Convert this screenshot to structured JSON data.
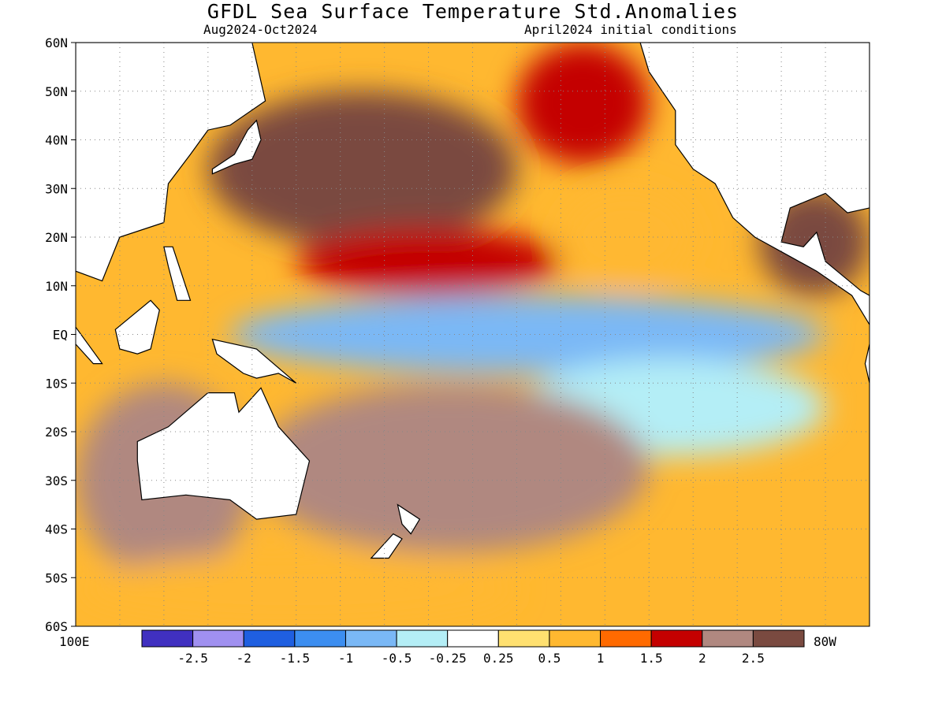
{
  "chart_data": {
    "type": "heatmap",
    "title": "GFDL Sea Surface Temperature Std.Anomalies",
    "subtitle_left": "Aug2024-Oct2024",
    "subtitle_right": "April2024 initial conditions",
    "xlim": [
      100,
      280
    ],
    "x_edge_labels": [
      "100E",
      "80W"
    ],
    "ylim": [
      -60,
      60
    ],
    "y_tick_values": [
      60,
      50,
      40,
      30,
      20,
      10,
      0,
      -10,
      -20,
      -30,
      -40,
      -50,
      -60
    ],
    "y_tick_labels": [
      "60N",
      "50N",
      "40N",
      "30N",
      "20N",
      "10N",
      "EQ",
      "10S",
      "20S",
      "30S",
      "40S",
      "50S",
      "60S"
    ],
    "grid": true,
    "legend_placement": "bottom",
    "colorbar": {
      "colors": [
        "#4030c0",
        "#a090f0",
        "#1f5fe0",
        "#3c8ef0",
        "#7ab8f6",
        "#b4eef6",
        "#ffffff",
        "#ffe070",
        "#ffb830",
        "#ff6a00",
        "#c40000",
        "#b08880",
        "#7a4a40"
      ],
      "tick_labels": [
        "-2.5",
        "-2",
        "-1.5",
        "-1",
        "-0.5",
        "-0.25",
        "0.25",
        "0.5",
        "1",
        "1.5",
        "2",
        "2.5"
      ]
    },
    "anomaly_regions": [
      {
        "lon": [
          130,
          200
        ],
        "lat": [
          18,
          50
        ],
        "value": 2.5
      },
      {
        "lon": [
          200,
          230
        ],
        "lat": [
          35,
          60
        ],
        "value": 1.5
      },
      {
        "lon": [
          150,
          210
        ],
        "lat": [
          8,
          22
        ],
        "value": 1.6
      },
      {
        "lon": [
          210,
          240
        ],
        "lat": [
          10,
          30
        ],
        "value": 0.6
      },
      {
        "lon": [
          135,
          270
        ],
        "lat": [
          -8,
          8
        ],
        "value": -0.6
      },
      {
        "lon": [
          200,
          270
        ],
        "lat": [
          -25,
          -5
        ],
        "value": -0.4
      },
      {
        "lon": [
          140,
          230
        ],
        "lat": [
          -45,
          -10
        ],
        "value": 2.4
      },
      {
        "lon": [
          100,
          140
        ],
        "lat": [
          -50,
          -10
        ],
        "value": 2.0
      },
      {
        "lon": [
          100,
          200
        ],
        "lat": [
          -60,
          -45
        ],
        "value": 0.8
      },
      {
        "lon": [
          255,
          280
        ],
        "lat": [
          8,
          30
        ],
        "value": 2.6
      }
    ]
  }
}
